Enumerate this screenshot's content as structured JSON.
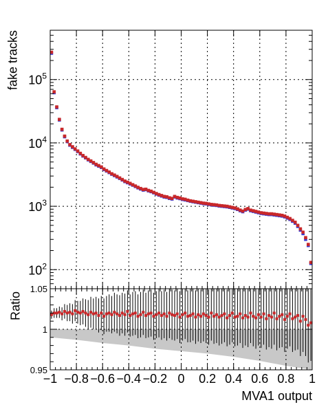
{
  "chart_data": [
    {
      "type": "scatter",
      "panel": "main",
      "xlabel": "",
      "ylabel": "fake tracks",
      "xlim": [
        -1,
        1
      ],
      "ylim": [
        50,
        600000
      ],
      "log_y": true,
      "grid": true,
      "y_tick_labels": [
        {
          "base": "10",
          "exp": "2",
          "value": 100
        },
        {
          "base": "10",
          "exp": "3",
          "value": 1000
        },
        {
          "base": "10",
          "exp": "4",
          "value": 10000
        },
        {
          "base": "10",
          "exp": "5",
          "value": 100000
        }
      ],
      "series": [
        {
          "marker_color": "#3a3ad0",
          "x": [
            -0.99,
            -0.97,
            -0.95,
            -0.93,
            -0.91,
            -0.89,
            -0.87,
            -0.85,
            -0.83,
            -0.81,
            -0.79,
            -0.77,
            -0.75,
            -0.73,
            -0.71,
            -0.69,
            -0.67,
            -0.65,
            -0.63,
            -0.61,
            -0.59,
            -0.57,
            -0.55,
            -0.53,
            -0.51,
            -0.49,
            -0.47,
            -0.45,
            -0.43,
            -0.41,
            -0.39,
            -0.37,
            -0.35,
            -0.33,
            -0.31,
            -0.29,
            -0.27,
            -0.25,
            -0.23,
            -0.21,
            -0.19,
            -0.17,
            -0.15,
            -0.13,
            -0.11,
            -0.09,
            -0.07,
            -0.05,
            -0.03,
            -0.01,
            0.01,
            0.03,
            0.05,
            0.07,
            0.09,
            0.11,
            0.13,
            0.15,
            0.17,
            0.19,
            0.21,
            0.23,
            0.25,
            0.27,
            0.29,
            0.31,
            0.33,
            0.35,
            0.37,
            0.39,
            0.41,
            0.43,
            0.45,
            0.47,
            0.49,
            0.51,
            0.53,
            0.55,
            0.57,
            0.59,
            0.61,
            0.63,
            0.65,
            0.67,
            0.69,
            0.71,
            0.73,
            0.75,
            0.77,
            0.79,
            0.81,
            0.83,
            0.85,
            0.87,
            0.89,
            0.91,
            0.93,
            0.95,
            0.97,
            0.99
          ],
          "y": [
            260000,
            62000,
            36000,
            23000,
            16000,
            12500,
            10500,
            9200,
            8500,
            7900,
            7300,
            6700,
            6200,
            5800,
            5400,
            5100,
            4800,
            4500,
            4300,
            4100,
            3800,
            3600,
            3400,
            3200,
            3050,
            2900,
            2750,
            2600,
            2450,
            2350,
            2250,
            2150,
            2050,
            1950,
            1870,
            1800,
            1830,
            1750,
            1700,
            1630,
            1560,
            1500,
            1450,
            1400,
            1380,
            1330,
            1300,
            1400,
            1350,
            1320,
            1280,
            1260,
            1230,
            1200,
            1180,
            1160,
            1140,
            1120,
            1100,
            1090,
            1070,
            1050,
            1040,
            1030,
            1010,
            1000,
            990,
            980,
            960,
            940,
            920,
            890,
            850,
            820,
            870,
            900,
            850,
            830,
            810,
            790,
            770,
            760,
            750,
            740,
            740,
            730,
            720,
            710,
            700,
            680,
            650,
            620,
            580,
            540,
            480,
            420,
            370,
            300,
            240,
            125
          ]
        },
        {
          "marker_color": "#c8282a",
          "x": [
            -0.99,
            -0.97,
            -0.95,
            -0.93,
            -0.91,
            -0.89,
            -0.87,
            -0.85,
            -0.83,
            -0.81,
            -0.79,
            -0.77,
            -0.75,
            -0.73,
            -0.71,
            -0.69,
            -0.67,
            -0.65,
            -0.63,
            -0.61,
            -0.59,
            -0.57,
            -0.55,
            -0.53,
            -0.51,
            -0.49,
            -0.47,
            -0.45,
            -0.43,
            -0.41,
            -0.39,
            -0.37,
            -0.35,
            -0.33,
            -0.31,
            -0.29,
            -0.27,
            -0.25,
            -0.23,
            -0.21,
            -0.19,
            -0.17,
            -0.15,
            -0.13,
            -0.11,
            -0.09,
            -0.07,
            -0.05,
            -0.03,
            -0.01,
            0.01,
            0.03,
            0.05,
            0.07,
            0.09,
            0.11,
            0.13,
            0.15,
            0.17,
            0.19,
            0.21,
            0.23,
            0.25,
            0.27,
            0.29,
            0.31,
            0.33,
            0.35,
            0.37,
            0.39,
            0.41,
            0.43,
            0.45,
            0.47,
            0.49,
            0.51,
            0.53,
            0.55,
            0.57,
            0.59,
            0.61,
            0.63,
            0.65,
            0.67,
            0.69,
            0.71,
            0.73,
            0.75,
            0.77,
            0.79,
            0.81,
            0.83,
            0.85,
            0.87,
            0.89,
            0.91,
            0.93,
            0.95,
            0.97,
            0.99
          ],
          "y": [
            270000,
            64000,
            37000,
            23500,
            16400,
            12800,
            10700,
            9400,
            8700,
            8050,
            7450,
            6850,
            6330,
            5900,
            5500,
            5200,
            4900,
            4600,
            4390,
            4180,
            3880,
            3670,
            3470,
            3260,
            3110,
            2960,
            2800,
            2650,
            2500,
            2400,
            2300,
            2190,
            2090,
            1990,
            1910,
            1840,
            1860,
            1780,
            1730,
            1660,
            1590,
            1530,
            1480,
            1430,
            1410,
            1360,
            1330,
            1430,
            1380,
            1350,
            1310,
            1290,
            1250,
            1220,
            1200,
            1180,
            1160,
            1140,
            1120,
            1110,
            1090,
            1070,
            1060,
            1050,
            1030,
            1020,
            1010,
            1000,
            980,
            960,
            940,
            910,
            870,
            840,
            890,
            920,
            870,
            850,
            830,
            810,
            790,
            780,
            770,
            760,
            760,
            750,
            740,
            730,
            720,
            700,
            670,
            640,
            600,
            560,
            500,
            440,
            390,
            320,
            250,
            130
          ]
        }
      ]
    },
    {
      "type": "scatter",
      "panel": "ratio",
      "xlabel": "MVA1 output",
      "ylabel": "Ratio",
      "xlim": [
        -1,
        1
      ],
      "ylim": [
        0.95,
        1.05
      ],
      "grid": true,
      "x_tick_labels": [
        "−1",
        "−0.8",
        "−0.6",
        "−0.4",
        "−0.2",
        "0",
        "0.2",
        "0.4",
        "0.6",
        "0.8",
        "1"
      ],
      "y_tick_labels": [
        "0.95",
        "1",
        "1.05"
      ],
      "band_color": "#c8c8c8",
      "band": {
        "x": [
          -1.0,
          -0.8,
          -0.6,
          -0.4,
          -0.2,
          0.0,
          0.2,
          0.4,
          0.6,
          0.8,
          1.0
        ],
        "lower": [
          0.99,
          0.987,
          0.983,
          0.98,
          0.976,
          0.973,
          0.97,
          0.966,
          0.961,
          0.955,
          0.95
        ],
        "upper": [
          1.0,
          1.0,
          1.0,
          1.0,
          1.0,
          1.0,
          1.0,
          1.0,
          1.0,
          1.0,
          1.0
        ]
      },
      "series": [
        {
          "marker_color": "#c8282a",
          "x": [
            -0.99,
            -0.97,
            -0.95,
            -0.93,
            -0.91,
            -0.89,
            -0.87,
            -0.85,
            -0.83,
            -0.81,
            -0.79,
            -0.77,
            -0.75,
            -0.73,
            -0.71,
            -0.69,
            -0.67,
            -0.65,
            -0.63,
            -0.61,
            -0.59,
            -0.57,
            -0.55,
            -0.53,
            -0.51,
            -0.49,
            -0.47,
            -0.45,
            -0.43,
            -0.41,
            -0.39,
            -0.37,
            -0.35,
            -0.33,
            -0.31,
            -0.29,
            -0.27,
            -0.25,
            -0.23,
            -0.21,
            -0.19,
            -0.17,
            -0.15,
            -0.13,
            -0.11,
            -0.09,
            -0.07,
            -0.05,
            -0.03,
            -0.01,
            0.01,
            0.03,
            0.05,
            0.07,
            0.09,
            0.11,
            0.13,
            0.15,
            0.17,
            0.19,
            0.21,
            0.23,
            0.25,
            0.27,
            0.29,
            0.31,
            0.33,
            0.35,
            0.37,
            0.39,
            0.41,
            0.43,
            0.45,
            0.47,
            0.49,
            0.51,
            0.53,
            0.55,
            0.57,
            0.59,
            0.61,
            0.63,
            0.65,
            0.67,
            0.69,
            0.71,
            0.73,
            0.75,
            0.77,
            0.79,
            0.81,
            0.83,
            0.85,
            0.87,
            0.89,
            0.91,
            0.93,
            0.95,
            0.97,
            0.99
          ],
          "y": [
            1.018,
            1.02,
            1.02,
            1.021,
            1.019,
            1.022,
            1.02,
            1.021,
            1.019,
            1.023,
            1.021,
            1.02,
            1.022,
            1.02,
            1.018,
            1.021,
            1.019,
            1.02,
            1.017,
            1.02,
            1.016,
            1.019,
            1.02,
            1.018,
            1.021,
            1.019,
            1.017,
            1.02,
            1.018,
            1.022,
            1.017,
            1.019,
            1.02,
            1.016,
            1.018,
            1.021,
            1.017,
            1.019,
            1.02,
            1.016,
            1.018,
            1.02,
            1.017,
            1.019,
            1.016,
            1.02,
            1.018,
            1.017,
            1.019,
            1.015,
            1.018,
            1.02,
            1.016,
            1.017,
            1.019,
            1.015,
            1.018,
            1.016,
            1.019,
            1.017,
            1.015,
            1.02,
            1.016,
            1.018,
            1.015,
            1.017,
            1.019,
            1.014,
            1.017,
            1.02,
            1.015,
            1.016,
            1.019,
            1.014,
            1.017,
            1.015,
            1.02,
            1.016,
            1.014,
            1.018,
            1.015,
            1.019,
            1.013,
            1.017,
            1.015,
            1.02,
            1.013,
            1.016,
            1.018,
            1.012,
            1.016,
            1.019,
            1.013,
            1.015,
            1.017,
            1.01,
            1.016,
            1.012,
            1.005,
            1.008
          ],
          "err": [
            0.005,
            0.006,
            0.006,
            0.007,
            0.008,
            0.009,
            0.01,
            0.011,
            0.012,
            0.013,
            0.014,
            0.015,
            0.016,
            0.017,
            0.018,
            0.019,
            0.019,
            0.02,
            0.021,
            0.021,
            0.022,
            0.022,
            0.023,
            0.023,
            0.024,
            0.024,
            0.025,
            0.025,
            0.026,
            0.026,
            0.026,
            0.027,
            0.027,
            0.027,
            0.028,
            0.028,
            0.028,
            0.029,
            0.029,
            0.029,
            0.029,
            0.03,
            0.03,
            0.03,
            0.03,
            0.031,
            0.031,
            0.031,
            0.031,
            0.032,
            0.032,
            0.032,
            0.032,
            0.033,
            0.033,
            0.033,
            0.033,
            0.033,
            0.034,
            0.034,
            0.034,
            0.034,
            0.034,
            0.035,
            0.035,
            0.035,
            0.035,
            0.035,
            0.036,
            0.036,
            0.036,
            0.036,
            0.036,
            0.037,
            0.037,
            0.037,
            0.037,
            0.037,
            0.038,
            0.038,
            0.038,
            0.038,
            0.038,
            0.039,
            0.039,
            0.039,
            0.039,
            0.039,
            0.04,
            0.04,
            0.04,
            0.04,
            0.041,
            0.041,
            0.042,
            0.043,
            0.044,
            0.045,
            0.046,
            0.047
          ]
        }
      ]
    }
  ]
}
